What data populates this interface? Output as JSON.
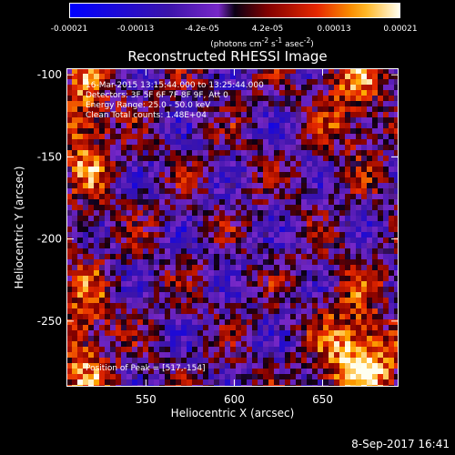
{
  "colorbar": {
    "ticks": [
      "-0.00021",
      "-0.00013",
      "-4.2e-05",
      "4.2e-05",
      "0.00013",
      "0.00021"
    ],
    "units_prefix": "(photons cm",
    "units_sup1": "-2",
    "units_mid1": " s",
    "units_sup2": "-1",
    "units_mid2": " asec",
    "units_sup3": "-2",
    "units_suffix": ")"
  },
  "chart_data": {
    "type": "heatmap",
    "title": "Reconstructed RHESSI Image",
    "xlabel": "Heliocentric X (arcsec)",
    "ylabel": "Heliocentric Y (arcsec)",
    "xlim": [
      505,
      693
    ],
    "ylim": [
      -290,
      -96
    ],
    "xticks": [
      550,
      600,
      650
    ],
    "yticks": [
      -100,
      -150,
      -200,
      -250
    ],
    "color_range": [
      -0.00021,
      0.00021
    ],
    "colormap": "blue-purple-red-yellow-white",
    "annotations": [
      "16-Mar-2015 13:15:44.000 to 13:25:44.000",
      "Detectors: 3F 5F 6F 7F 8F 9F, Att 0",
      "Energy Range: 25.0 - 50.0 keV",
      "Clean    Total counts: 1.48E+04"
    ],
    "peak_label": "Position of Peak = [517,-154]",
    "peak": [
      517,
      -154
    ]
  },
  "timestamp": "8-Sep-2017 16:41"
}
